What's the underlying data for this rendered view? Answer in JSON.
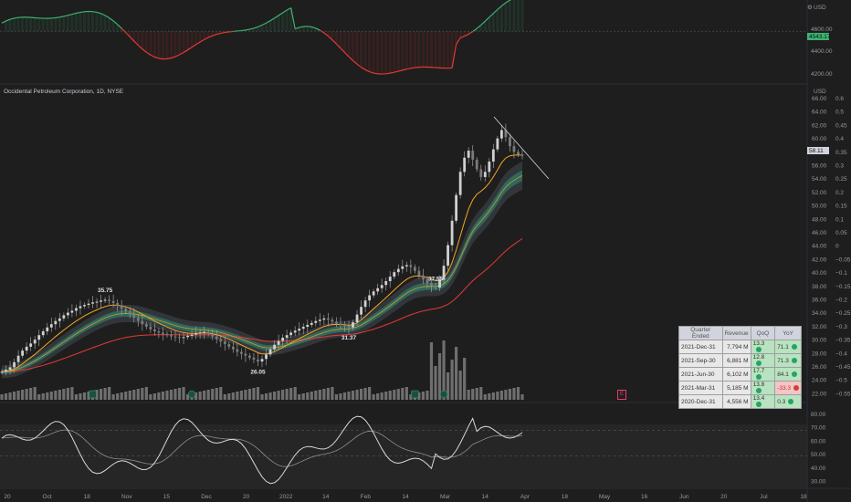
{
  "title": "Occidental Petroleum Corporation, 1D, NYSE",
  "top_pane": {
    "currency": "USD",
    "gear_glyph": "⚙",
    "price_labels": [
      "4600.00",
      "4400.00",
      "4200.00"
    ],
    "last_value": "4543.17"
  },
  "main_pane": {
    "currency": "USD",
    "left_ticks": [
      "66.00",
      "64.00",
      "62.00",
      "60.00",
      "58.00",
      "56.00",
      "54.00",
      "52.00",
      "50.00",
      "48.00",
      "46.00",
      "44.00",
      "42.00",
      "40.00",
      "38.00",
      "36.00",
      "34.00",
      "32.00",
      "30.00",
      "28.00",
      "26.00",
      "24.00",
      "22.00"
    ],
    "right_ticks": [
      "0.6",
      "0.5",
      "0.45",
      "0.4",
      "0.35",
      "0.3",
      "0.25",
      "0.2",
      "0.15",
      "0.1",
      "0.05",
      "0",
      "−0.05",
      "−0.1",
      "−0.15",
      "−0.2",
      "−0.25",
      "−0.3",
      "−0.35",
      "−0.4",
      "−0.45",
      "−0.5",
      "−0.55"
    ],
    "last_price": "58.11",
    "callouts": [
      {
        "label": "35.75",
        "date_index": 25
      },
      {
        "label": "26.05",
        "date_index": 62
      },
      {
        "label": "31.37",
        "date_index": 84
      },
      {
        "label": "37.55",
        "date_index": 105
      }
    ],
    "earnings_marker": "E"
  },
  "osc_pane": {
    "ticks": [
      "80.00",
      "70.00",
      "60.00",
      "50.00",
      "40.00",
      "30.00"
    ]
  },
  "x_axis_labels": [
    "20",
    "Oct",
    "18",
    "Nov",
    "15",
    "Dec",
    "20",
    "2022",
    "14",
    "Feb",
    "14",
    "Mar",
    "14",
    "Apr",
    "18",
    "May",
    "16",
    "Jun",
    "20",
    "Jul",
    "18"
  ],
  "table": {
    "headers": [
      "Quarter Ended",
      "Revenue",
      "QoQ",
      "YoY"
    ],
    "rows": [
      {
        "quarter": "2021-Dec-31",
        "revenue": "7,794 M",
        "qoq": "13.3",
        "yoy": "71.1",
        "yoy_status": "up"
      },
      {
        "quarter": "2021-Sep-30",
        "revenue": "6,881 M",
        "qoq": "12.8",
        "yoy": "71.3",
        "yoy_status": "up"
      },
      {
        "quarter": "2021-Jun-30",
        "revenue": "6,102 M",
        "qoq": "17.7",
        "yoy": "84.1",
        "yoy_status": "up"
      },
      {
        "quarter": "2021-Mar-31",
        "revenue": "5,185 M",
        "qoq": "13.8",
        "yoy": "-33.3",
        "yoy_status": "down"
      },
      {
        "quarter": "2020-Dec-31",
        "revenue": "4,556 M",
        "qoq": "13.4",
        "yoy": "0.3",
        "yoy_status": "up"
      }
    ]
  },
  "colors": {
    "background": "#1e1e1e",
    "candle": "#9e9e9e",
    "ema_fast": "#f5a623",
    "ema_slow": "#e53935",
    "band": "#2e7d6b",
    "osc_up": "#3cb371",
    "osc_down": "#e53935",
    "rsi_line": "#d9d9d9"
  },
  "chart_data": {
    "type": "candlestick",
    "series": [
      {
        "name": "Occidental Petroleum Corporation",
        "approx_daily_close": [
          24.5,
          24.8,
          25.2,
          26.0,
          27.0,
          27.8,
          28.4,
          28.9,
          29.5,
          30.2,
          30.8,
          31.4,
          31.9,
          32.4,
          32.8,
          33.3,
          33.7,
          34.0,
          34.4,
          34.7,
          34.9,
          35.1,
          35.3,
          35.4,
          35.6,
          35.7,
          35.5,
          35.2,
          34.8,
          34.3,
          33.9,
          33.4,
          32.9,
          32.4,
          31.9,
          31.5,
          31.1,
          30.8,
          30.6,
          30.4,
          30.2,
          30.0,
          29.9,
          29.8,
          29.9,
          30.1,
          30.3,
          30.5,
          30.6,
          30.7,
          30.4,
          30.0,
          29.6,
          29.2,
          28.8,
          28.4,
          28.0,
          27.6,
          27.3,
          27.0,
          26.7,
          26.4,
          26.1,
          26.5,
          27.2,
          28.0,
          28.7,
          29.3,
          29.8,
          30.2,
          30.6,
          30.9,
          31.2,
          31.5,
          31.8,
          32.1,
          32.4,
          32.6,
          32.8,
          32.6,
          32.3,
          32.0,
          31.8,
          31.6,
          31.4,
          32.2,
          33.4,
          34.6,
          35.6,
          36.4,
          37.0,
          37.5,
          38.0,
          38.6,
          39.3,
          40.0,
          40.5,
          40.9,
          41.1,
          40.8,
          40.2,
          39.5,
          38.9,
          38.3,
          37.9,
          37.6,
          38.8,
          41.0,
          44.2,
          48.0,
          52.0,
          55.6,
          57.8,
          58.9,
          57.5,
          56.0,
          54.8,
          55.6,
          57.2,
          59.1,
          60.8,
          62.1,
          61.0,
          59.6,
          58.7,
          58.3,
          58.1
        ]
      }
    ],
    "callout_values": [
      35.75,
      26.05,
      31.37,
      37.55
    ],
    "last_close": 58.11,
    "ylim": [
      21,
      67
    ],
    "index_last": 4543.17,
    "index_ylim": [
      4180,
      4720
    ],
    "osc_ylim": [
      28,
      82
    ],
    "grid": false
  }
}
